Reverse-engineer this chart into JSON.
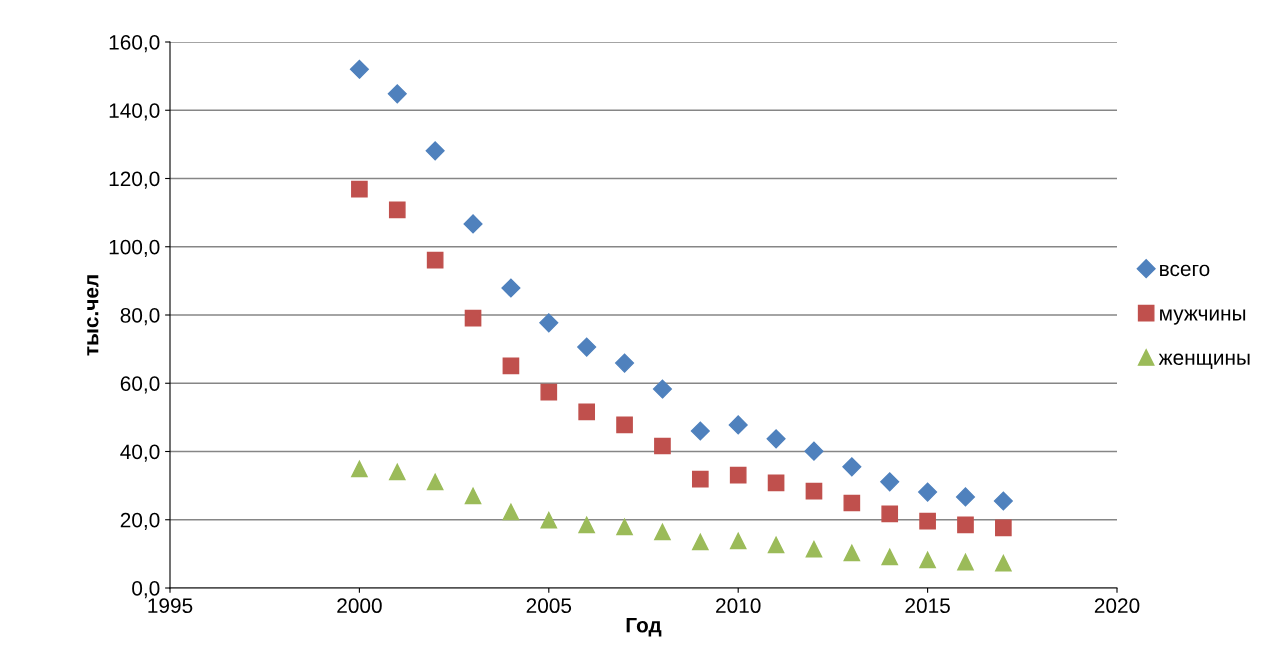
{
  "chart_data": {
    "type": "scatter",
    "xlabel": "Год",
    "ylabel": "тыс.чел",
    "x": [
      2000,
      2001,
      2002,
      2003,
      2004,
      2005,
      2006,
      2007,
      2008,
      2009,
      2010,
      2011,
      2012,
      2013,
      2014,
      2015,
      2016,
      2017
    ],
    "series": [
      {
        "name": "всего",
        "color": "#4f81bd",
        "marker": "diamond",
        "values": [
          152,
          144.8,
          128.1,
          106.7,
          87.9,
          77.7,
          70.6,
          65.9,
          58.3,
          46.0,
          47.8,
          43.7,
          40.1,
          35.5,
          31.1,
          28.1,
          26.7,
          25.5
        ]
      },
      {
        "name": "мужчины",
        "color": "#c0504d",
        "marker": "square",
        "values": [
          116.9,
          110.8,
          96.1,
          79.1,
          65.1,
          57.4,
          51.6,
          47.8,
          41.6,
          31.9,
          33.1,
          30.8,
          28.4,
          24.9,
          21.7,
          19.6,
          18.5,
          17.6
        ]
      },
      {
        "name": "женщины",
        "color": "#9bbb59",
        "marker": "triangle",
        "values": [
          34.9,
          34.0,
          31.1,
          27.0,
          22.3,
          19.9,
          18.5,
          17.9,
          16.4,
          13.5,
          13.8,
          12.6,
          11.4,
          10.3,
          9.1,
          8.2,
          7.6,
          7.3
        ]
      }
    ],
    "xlim": [
      1995,
      2020
    ],
    "xticks": [
      1995,
      2000,
      2005,
      2010,
      2015,
      2020
    ],
    "ylim": [
      0,
      160
    ],
    "yticks": [
      {
        "value": 0,
        "label": "0,0"
      },
      {
        "value": 20,
        "label": "20,0"
      },
      {
        "value": 40,
        "label": "40,0"
      },
      {
        "value": 60,
        "label": "60,0"
      },
      {
        "value": 80,
        "label": "80,0"
      },
      {
        "value": 100,
        "label": "100,0"
      },
      {
        "value": 120,
        "label": "120,0"
      },
      {
        "value": 140,
        "label": "140,0"
      },
      {
        "value": 160,
        "label": "160,0"
      }
    ],
    "grid": "y",
    "legend": "right"
  }
}
